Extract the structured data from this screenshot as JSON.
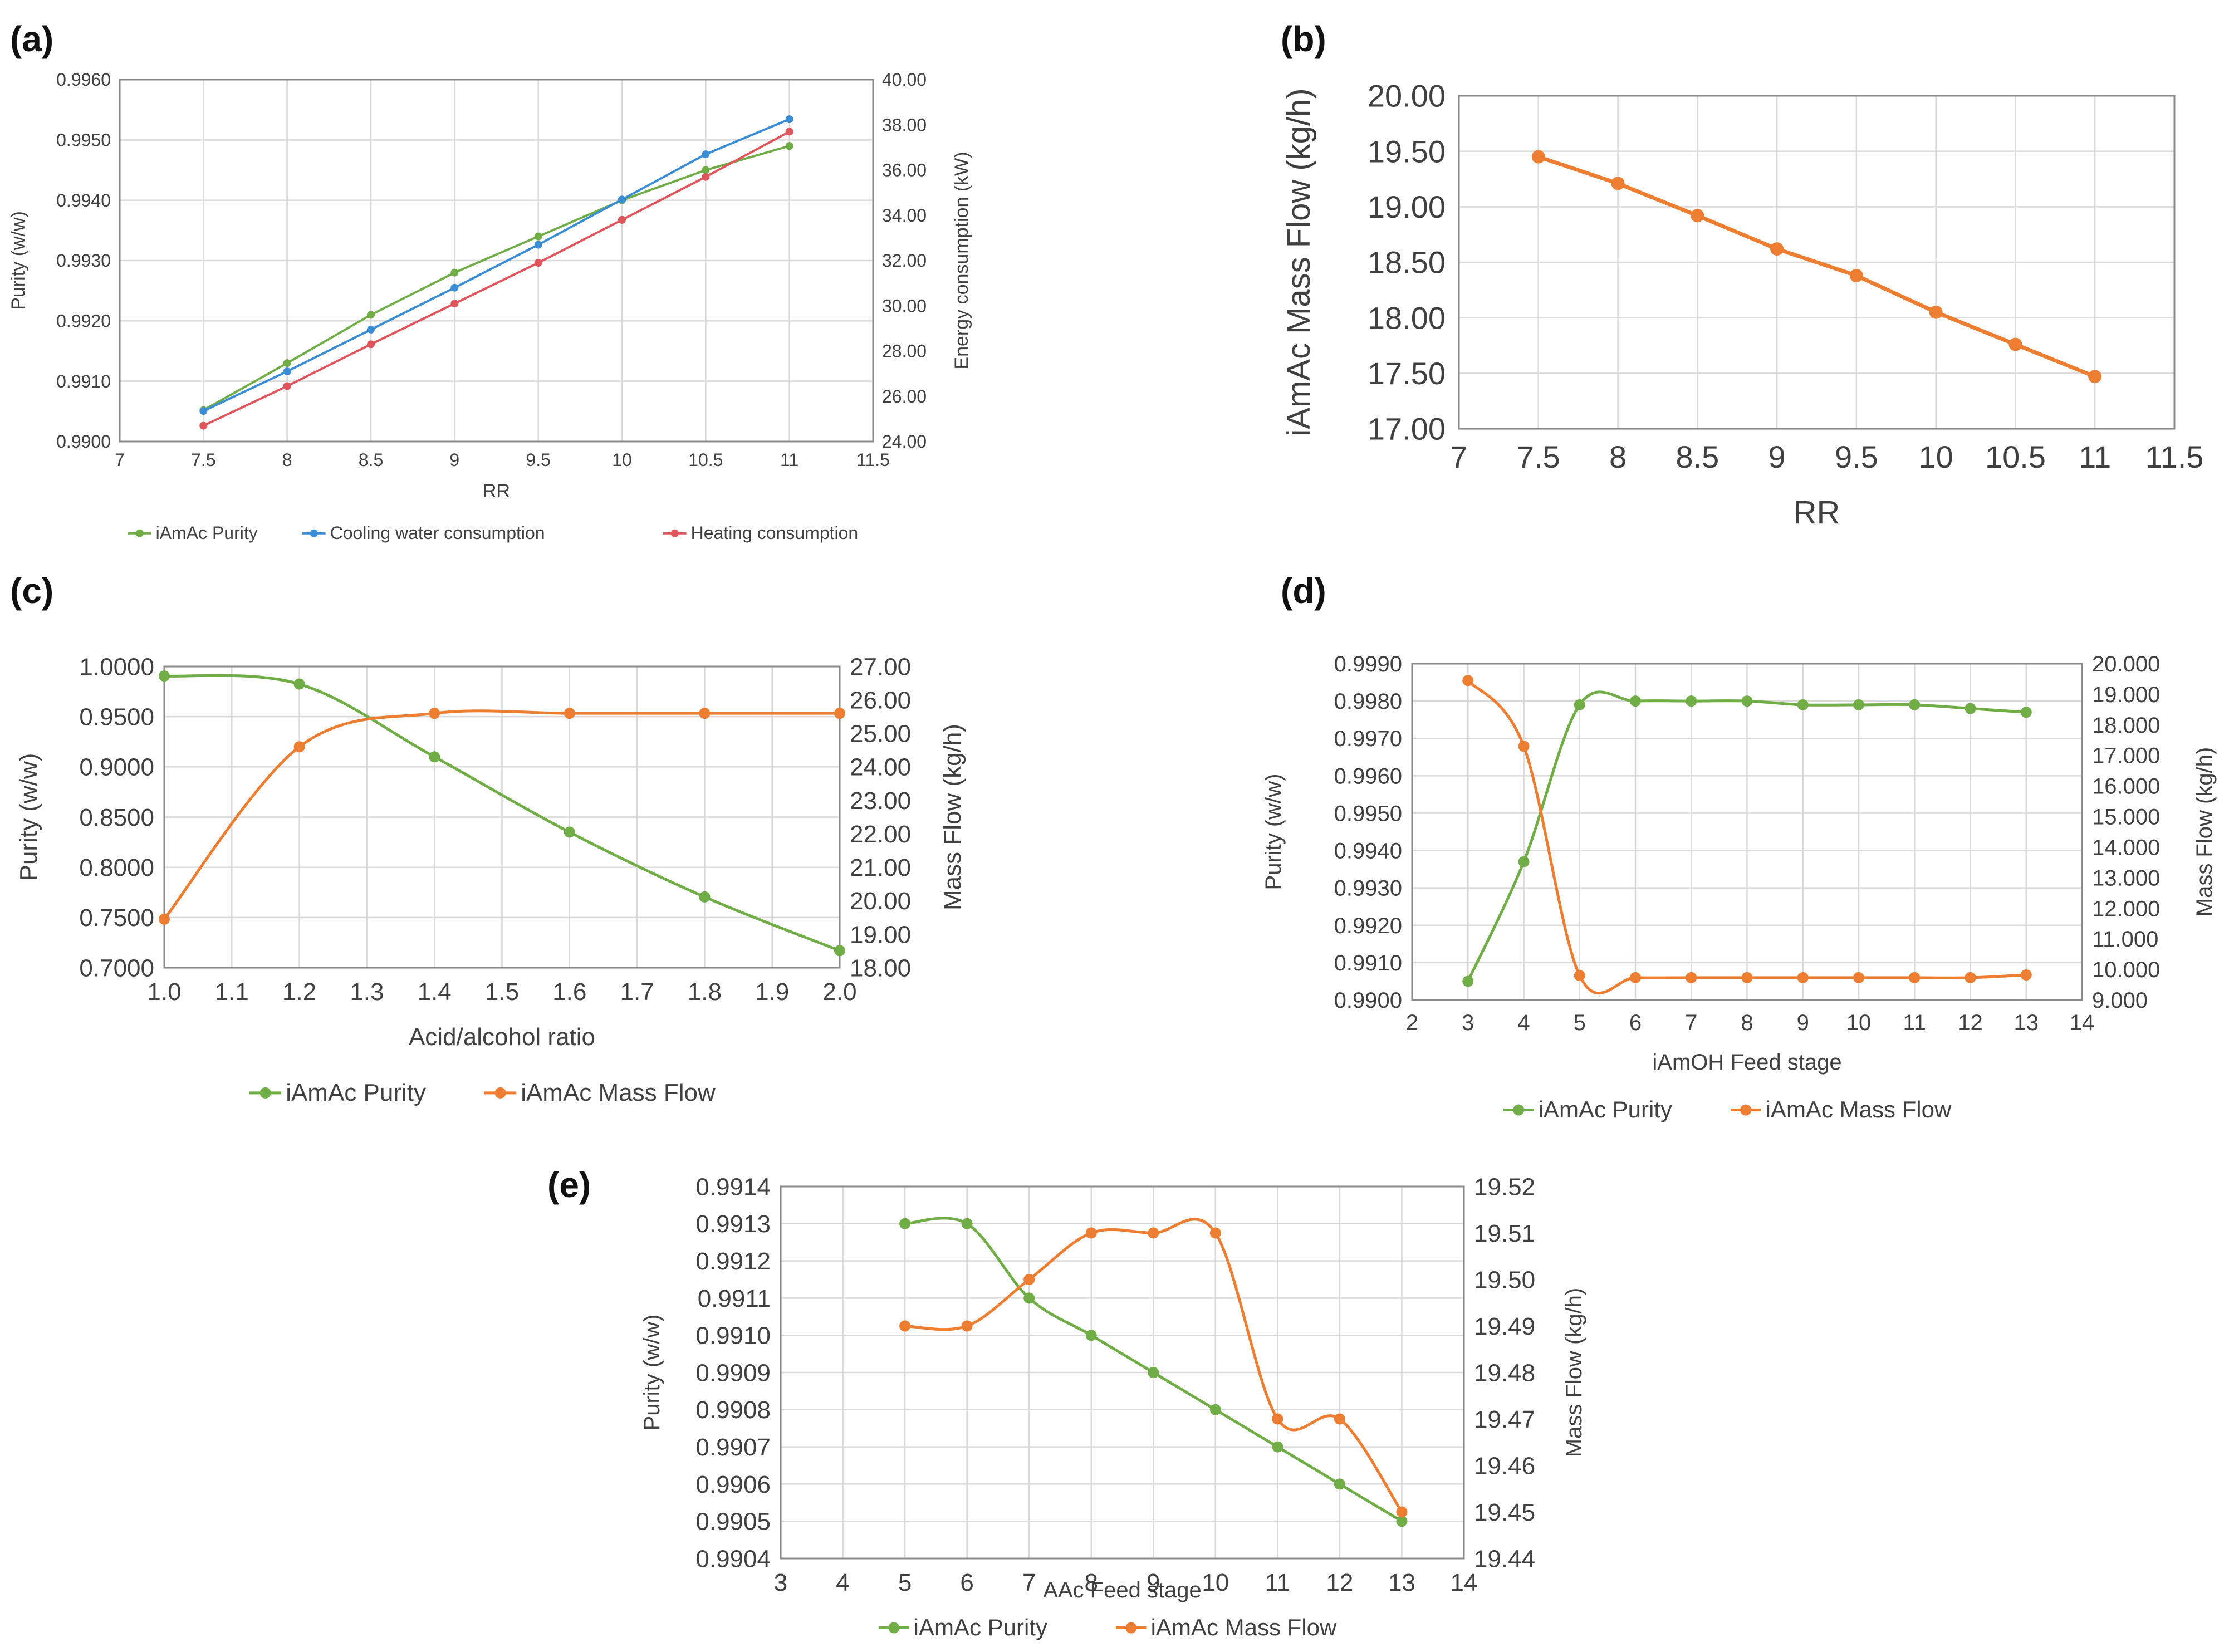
{
  "colors": {
    "green": "#70AD47",
    "orange": "#ED7D31",
    "blue": "#3A8DD4",
    "red": "#E0555C"
  },
  "chart_data": [
    {
      "id": "a",
      "panel_label": "(a)",
      "type": "line",
      "xlabel": "RR",
      "ylabel": "Purity (w/w)",
      "y2label": "Energy consumption (kW)",
      "xlim": [
        7,
        11.5
      ],
      "xticks": [
        7,
        7.5,
        8,
        8.5,
        9,
        9.5,
        10,
        10.5,
        11,
        11.5
      ],
      "xtick_labels": [
        "7",
        "7.5",
        "8",
        "8.5",
        "9",
        "9.5",
        "10",
        "10.5",
        "11",
        "11.5"
      ],
      "ylim": [
        0.99,
        0.996
      ],
      "yticks": [
        0.99,
        0.991,
        0.992,
        0.993,
        0.994,
        0.995,
        0.996
      ],
      "ytick_labels": [
        "0.9900",
        "0.9910",
        "0.9920",
        "0.9930",
        "0.9940",
        "0.9950",
        "0.9960"
      ],
      "y2lim": [
        24,
        40
      ],
      "y2ticks": [
        24,
        26,
        28,
        30,
        32,
        34,
        36,
        38,
        40
      ],
      "y2tick_labels": [
        "24.00",
        "26.00",
        "28.00",
        "30.00",
        "32.00",
        "34.00",
        "36.00",
        "38.00",
        "40.00"
      ],
      "x": [
        7.5,
        8,
        8.5,
        9,
        9.5,
        10,
        10.5,
        11
      ],
      "series": [
        {
          "name": "iAmAc Purity",
          "axis": "left",
          "color": "green",
          "smooth": false,
          "values": [
            0.99052,
            0.9913,
            0.9921,
            0.9928,
            0.9934,
            0.994,
            0.9945,
            0.9949
          ]
        },
        {
          "name": "Cooling water consumption",
          "axis": "right",
          "color": "blue",
          "smooth": false,
          "values": [
            25.35,
            27.1,
            28.95,
            30.8,
            32.7,
            34.7,
            36.7,
            38.25
          ]
        },
        {
          "name": "Heating consumption",
          "axis": "right",
          "color": "red",
          "smooth": false,
          "values": [
            24.7,
            26.45,
            28.3,
            30.1,
            31.9,
            33.8,
            35.7,
            37.7
          ]
        }
      ]
    },
    {
      "id": "b",
      "panel_label": "(b)",
      "type": "line",
      "xlabel": "RR",
      "ylabel": "iAmAc Mass Flow (kg/h)",
      "xlim": [
        7,
        11.5
      ],
      "xticks": [
        7,
        7.5,
        8,
        8.5,
        9,
        9.5,
        10,
        10.5,
        11,
        11.5
      ],
      "xtick_labels": [
        "7",
        "7.5",
        "8",
        "8.5",
        "9",
        "9.5",
        "10",
        "10.5",
        "11",
        "11.5"
      ],
      "ylim": [
        17,
        20
      ],
      "yticks": [
        17,
        17.5,
        18,
        18.5,
        19,
        19.5,
        20
      ],
      "ytick_labels": [
        "17.00",
        "17.50",
        "18.00",
        "18.50",
        "19.00",
        "19.50",
        "20.00"
      ],
      "x": [
        7.5,
        8,
        8.5,
        9,
        9.5,
        10,
        10.5,
        11
      ],
      "series": [
        {
          "name": "iAmAc Mass Flow",
          "axis": "left",
          "color": "orange",
          "smooth": false,
          "values": [
            19.45,
            19.21,
            18.92,
            18.62,
            18.38,
            18.05,
            17.76,
            17.47
          ]
        }
      ]
    },
    {
      "id": "c",
      "panel_label": "(c)",
      "type": "line",
      "xlabel": "Acid/alcohol ratio",
      "ylabel": "Purity (w/w)",
      "y2label": "Mass Flow (kg/h)",
      "xlim": [
        1,
        2
      ],
      "xticks": [
        1,
        1.1,
        1.2,
        1.3,
        1.4,
        1.5,
        1.6,
        1.7,
        1.8,
        1.9,
        2
      ],
      "xtick_labels": [
        "1.0",
        "1.1",
        "1.2",
        "1.3",
        "1.4",
        "1.5",
        "1.6",
        "1.7",
        "1.8",
        "1.9",
        "2.0"
      ],
      "ylim": [
        0.7,
        1.0
      ],
      "yticks": [
        0.7,
        0.75,
        0.8,
        0.85,
        0.9,
        0.95,
        1.0
      ],
      "ytick_labels": [
        "0.7000",
        "0.7500",
        "0.8000",
        "0.8500",
        "0.9000",
        "0.9500",
        "1.0000"
      ],
      "y2lim": [
        18,
        27
      ],
      "y2ticks": [
        18,
        19,
        20,
        21,
        22,
        23,
        24,
        25,
        26,
        27
      ],
      "y2tick_labels": [
        "18.00",
        "19.00",
        "20.00",
        "21.00",
        "22.00",
        "23.00",
        "24.00",
        "25.00",
        "26.00",
        "27.00"
      ],
      "x": [
        1.0,
        1.2,
        1.4,
        1.6,
        1.8,
        2.0
      ],
      "series": [
        {
          "name": "iAmAc Purity",
          "axis": "left",
          "color": "green",
          "smooth": true,
          "values": [
            0.9905,
            0.9825,
            0.91,
            0.835,
            0.7705,
            0.717
          ]
        },
        {
          "name": "iAmAc Mass Flow",
          "axis": "right",
          "color": "orange",
          "smooth": true,
          "values": [
            19.45,
            24.6,
            25.6,
            25.6,
            25.6,
            25.6
          ]
        }
      ]
    },
    {
      "id": "d",
      "panel_label": "(d)",
      "type": "line",
      "xlabel": "iAmOH Feed stage",
      "ylabel": "Purity (w/w)",
      "y2label": "Mass Flow (kg/h)",
      "xlim": [
        2,
        14
      ],
      "xticks": [
        2,
        3,
        4,
        5,
        6,
        7,
        8,
        9,
        10,
        11,
        12,
        13,
        14
      ],
      "xtick_labels": [
        "2",
        "3",
        "4",
        "5",
        "6",
        "7",
        "8",
        "9",
        "10",
        "11",
        "12",
        "13",
        "14"
      ],
      "ylim": [
        0.99,
        0.999
      ],
      "yticks": [
        0.99,
        0.991,
        0.992,
        0.993,
        0.994,
        0.995,
        0.996,
        0.997,
        0.998,
        0.999
      ],
      "ytick_labels": [
        "0.9900",
        "0.9910",
        "0.9920",
        "0.9930",
        "0.9940",
        "0.9950",
        "0.9960",
        "0.9970",
        "0.9980",
        "0.9990"
      ],
      "y2lim": [
        9,
        20
      ],
      "y2ticks": [
        9,
        10,
        11,
        12,
        13,
        14,
        15,
        16,
        17,
        18,
        19,
        20
      ],
      "y2tick_labels": [
        "9.000",
        "10.000",
        "11.000",
        "12.000",
        "13.000",
        "14.000",
        "15.000",
        "16.000",
        "17.000",
        "18.000",
        "19.000",
        "20.000"
      ],
      "x": [
        3,
        4,
        5,
        6,
        7,
        8,
        9,
        10,
        11,
        12,
        13
      ],
      "series": [
        {
          "name": "iAmAc Purity",
          "axis": "left",
          "color": "green",
          "smooth": true,
          "values": [
            0.9905,
            0.9937,
            0.9979,
            0.998,
            0.998,
            0.998,
            0.9979,
            0.9979,
            0.9979,
            0.9978,
            0.9977
          ]
        },
        {
          "name": "iAmAc Mass Flow",
          "axis": "right",
          "color": "orange",
          "smooth": true,
          "values": [
            19.45,
            17.3,
            9.8,
            9.73,
            9.73,
            9.73,
            9.73,
            9.73,
            9.73,
            9.73,
            9.82
          ]
        }
      ]
    },
    {
      "id": "e",
      "panel_label": "(e)",
      "type": "line",
      "xlabel": "AAc Feed stage",
      "ylabel": "Purity (w/w)",
      "y2label": "Mass Flow (kg/h)",
      "xlim": [
        3,
        14
      ],
      "xticks": [
        3,
        4,
        5,
        6,
        7,
        8,
        9,
        10,
        11,
        12,
        13,
        14
      ],
      "xtick_labels": [
        "3",
        "4",
        "5",
        "6",
        "7",
        "8",
        "9",
        "10",
        "11",
        "12",
        "13",
        "14"
      ],
      "ylim": [
        0.9904,
        0.9914
      ],
      "yticks": [
        0.9904,
        0.9905,
        0.9906,
        0.9907,
        0.9908,
        0.9909,
        0.991,
        0.9911,
        0.9912,
        0.9913,
        0.9914
      ],
      "ytick_labels": [
        "0.9904",
        "0.9905",
        "0.9906",
        "0.9907",
        "0.9908",
        "0.9909",
        "0.9910",
        "0.9911",
        "0.9912",
        "0.9913",
        "0.9914"
      ],
      "y2lim": [
        19.44,
        19.52
      ],
      "y2ticks": [
        19.44,
        19.45,
        19.46,
        19.47,
        19.48,
        19.49,
        19.5,
        19.51,
        19.52
      ],
      "y2tick_labels": [
        "19.44",
        "19.45",
        "19.46",
        "19.47",
        "19.48",
        "19.49",
        "19.50",
        "19.51",
        "19.52"
      ],
      "x": [
        5,
        6,
        7,
        8,
        9,
        10,
        11,
        12,
        13
      ],
      "series": [
        {
          "name": "iAmAc Purity",
          "axis": "left",
          "color": "green",
          "smooth": true,
          "values": [
            0.9913,
            0.9913,
            0.9911,
            0.991,
            0.9909,
            0.9908,
            0.9907,
            0.9906,
            0.9905
          ]
        },
        {
          "name": "iAmAc Mass Flow",
          "axis": "right",
          "color": "orange",
          "smooth": true,
          "values": [
            19.49,
            19.49,
            19.5,
            19.51,
            19.51,
            19.51,
            19.47,
            19.47,
            19.45
          ]
        }
      ]
    }
  ]
}
